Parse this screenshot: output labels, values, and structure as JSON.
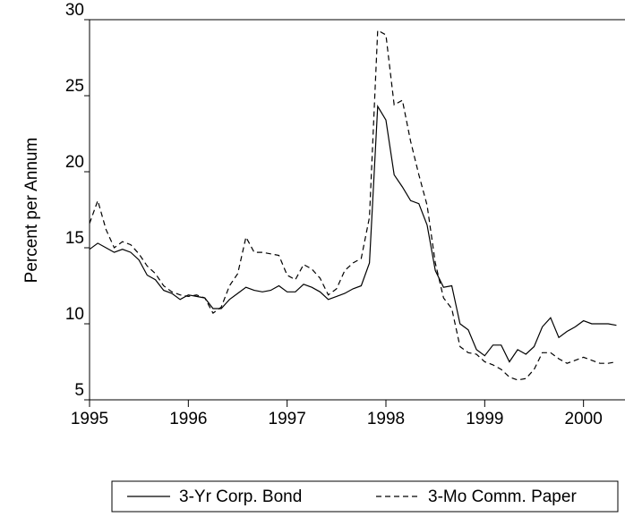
{
  "chart_data": {
    "type": "line",
    "y_label": "Percent per Annum",
    "x": [
      1995,
      1995.0833,
      1995.1667,
      1995.25,
      1995.3333,
      1995.4167,
      1995.5,
      1995.5833,
      1995.6667,
      1995.75,
      1995.8333,
      1995.9167,
      1996,
      1996.0833,
      1996.1667,
      1996.25,
      1996.3333,
      1996.4167,
      1996.5,
      1996.5833,
      1996.6667,
      1996.75,
      1996.8333,
      1996.9167,
      1997,
      1997.0833,
      1997.1667,
      1997.25,
      1997.3333,
      1997.4167,
      1997.5,
      1997.5833,
      1997.6667,
      1997.75,
      1997.8333,
      1997.9167,
      1998,
      1998.0833,
      1998.1667,
      1998.25,
      1998.3333,
      1998.4167,
      1998.5,
      1998.5833,
      1998.6667,
      1998.75,
      1998.8333,
      1998.9167,
      1999,
      1999.0833,
      1999.1667,
      1999.25,
      1999.3333,
      1999.4167,
      1999.5,
      1999.5833,
      1999.6667,
      1999.75,
      1999.8333,
      1999.9167,
      2000,
      2000.0833,
      2000.1667,
      2000.25,
      2000.3333
    ],
    "series": [
      {
        "name": "3-Yr Corp. Bond",
        "color": "#000000",
        "dash": "none",
        "values": [
          14.9,
          15.3,
          15.0,
          14.7,
          14.9,
          14.7,
          14.2,
          13.2,
          12.9,
          12.2,
          12.0,
          11.6,
          11.9,
          11.8,
          11.7,
          11.0,
          11.0,
          11.6,
          12.0,
          12.4,
          12.2,
          12.1,
          12.2,
          12.5,
          12.1,
          12.1,
          12.6,
          12.4,
          12.1,
          11.6,
          11.8,
          12.0,
          12.3,
          12.5,
          14.0,
          24.3,
          23.4,
          19.8,
          19.0,
          18.1,
          17.9,
          16.5,
          13.5,
          12.4,
          12.5,
          10.0,
          9.6,
          8.3,
          7.9,
          8.6,
          8.6,
          7.5,
          8.3,
          8.0,
          8.5,
          9.8,
          10.4,
          9.1,
          9.5,
          9.8,
          10.2,
          10.0,
          10.0,
          10.0,
          9.9
        ]
      },
      {
        "name": "3-Mo Comm. Paper",
        "color": "#000000",
        "dash": "6,4",
        "values": [
          16.6,
          18.1,
          16.2,
          15.0,
          15.4,
          15.2,
          14.6,
          13.8,
          13.3,
          12.5,
          12.1,
          11.9,
          11.8,
          11.9,
          11.7,
          10.7,
          11.1,
          12.5,
          13.3,
          15.7,
          14.7,
          14.7,
          14.6,
          14.5,
          13.2,
          12.9,
          13.9,
          13.6,
          13.0,
          11.9,
          12.3,
          13.5,
          14.0,
          14.3,
          17.0,
          29.3,
          29.0,
          24.4,
          24.7,
          22.0,
          19.8,
          17.8,
          14.0,
          11.7,
          11.0,
          8.5,
          8.1,
          8.0,
          7.5,
          7.3,
          7.0,
          6.5,
          6.3,
          6.4,
          7.0,
          8.1,
          8.1,
          7.7,
          7.4,
          7.6,
          7.8,
          7.6,
          7.4,
          7.4,
          7.5
        ]
      }
    ],
    "xlim": [
      1995,
      2000.42
    ],
    "xticks": [
      1995,
      1996,
      1997,
      1998,
      1999,
      2000
    ],
    "ylim": [
      5,
      30
    ],
    "yticks": [
      5,
      10,
      15,
      20,
      25,
      30
    ],
    "legend": "bottom"
  }
}
